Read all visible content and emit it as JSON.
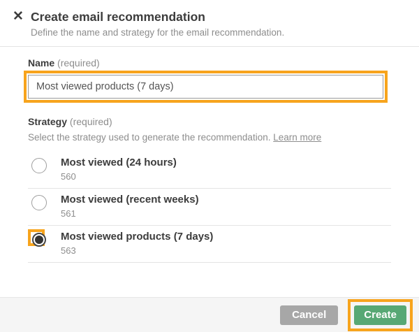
{
  "modal": {
    "title": "Create email recommendation",
    "subtitle": "Define the name and strategy for the email recommendation."
  },
  "icons": {
    "close": "✕"
  },
  "name_field": {
    "label": "Name",
    "required_hint": "(required)",
    "value": "Most viewed products (7 days)"
  },
  "strategy": {
    "label": "Strategy",
    "required_hint": "(required)",
    "description": "Select the strategy used to generate the recommendation.",
    "learn_more_label": "Learn more",
    "options": [
      {
        "label": "Most viewed (24 hours)",
        "id": "560",
        "selected": false
      },
      {
        "label": "Most viewed (recent weeks)",
        "id": "561",
        "selected": false
      },
      {
        "label": "Most viewed products (7 days)",
        "id": "563",
        "selected": true
      }
    ]
  },
  "footer": {
    "cancel_label": "Cancel",
    "create_label": "Create"
  },
  "colors": {
    "annotation_highlight": "#F7A41D",
    "create_button": "#57A874",
    "cancel_button": "#A7A7A7"
  }
}
